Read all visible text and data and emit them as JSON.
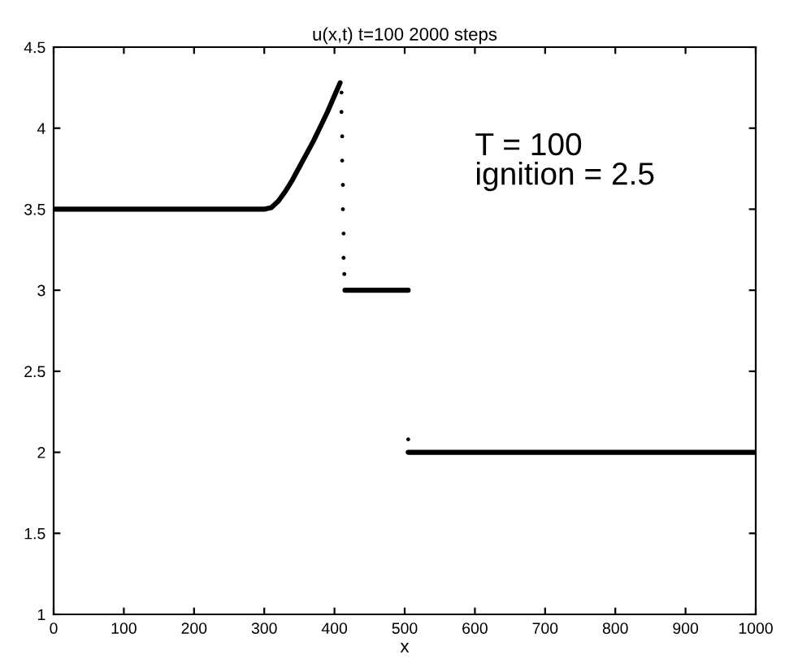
{
  "chart_data": {
    "type": "scatter",
    "title": "u(x,t) t=100 2000 steps",
    "xlabel": "x",
    "annotations": [
      "T = 100\nignition = 2.5"
    ],
    "series": [
      {
        "type": "line",
        "color": "#000000",
        "x": [
          0,
          100,
          200,
          300,
          310,
          320,
          330,
          340,
          350,
          360,
          370,
          380,
          390,
          400,
          408
        ],
        "values": [
          3.5,
          3.5,
          3.5,
          3.5,
          3.51,
          3.55,
          3.61,
          3.68,
          3.76,
          3.84,
          3.92,
          4.01,
          4.1,
          4.2,
          4.28
        ]
      },
      {
        "color": "#000000",
        "x": [
          410,
          410,
          411,
          411,
          412,
          412,
          413,
          413,
          414
        ],
        "values": [
          4.22,
          4.1,
          3.95,
          3.8,
          3.65,
          3.5,
          3.35,
          3.2,
          3.1
        ]
      },
      {
        "type": "line",
        "color": "#000000",
        "x": [
          415,
          505
        ],
        "values": [
          3.0,
          3.0
        ]
      },
      {
        "color": "#000000",
        "x": [
          505
        ],
        "values": [
          2.08
        ]
      },
      {
        "type": "line",
        "color": "#000000",
        "x": [
          505,
          1000
        ],
        "values": [
          2.0,
          2.0
        ]
      }
    ],
    "xlim": [
      0,
      1000
    ],
    "ylim": [
      1,
      4.5
    ],
    "xticks": [
      0,
      100,
      200,
      300,
      400,
      500,
      600,
      700,
      800,
      900,
      1000
    ],
    "yticks": [
      1,
      1.5,
      2,
      2.5,
      3,
      3.5,
      4,
      4.5
    ],
    "grid": false,
    "legend": false
  }
}
